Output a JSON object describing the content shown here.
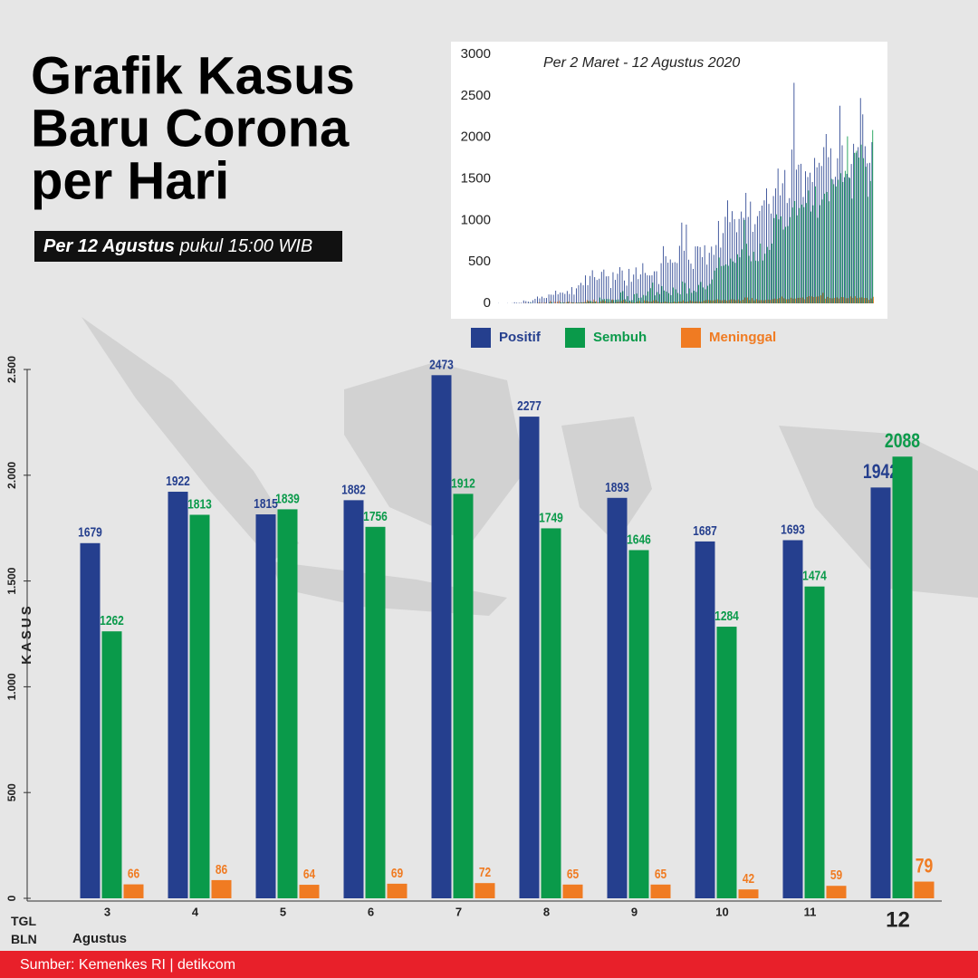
{
  "title": [
    "Grafik Kasus",
    "Baru Corona",
    "per Hari"
  ],
  "subtitle": {
    "bold": "Per 12 Agustus",
    "rest": "pukul 15:00 WIB"
  },
  "source": "Sumber: Kemenkes RI | detikcom",
  "x_label": "TGL\nBLN",
  "chart_data": [
    {
      "type": "bar",
      "y_label": "KASUS",
      "month_label": "Agustus",
      "categories": [
        "3",
        "4",
        "5",
        "6",
        "7",
        "8",
        "9",
        "10",
        "11",
        "12"
      ],
      "ylim": [
        0,
        2500
      ],
      "yticks": [
        0,
        {
          "value": 500,
          "label": "500"
        },
        {
          "value": 1000,
          "label": "1.000"
        },
        {
          "value": 1500,
          "label": "1.500"
        },
        {
          "value": 2000,
          "label": "2.000"
        },
        {
          "value": 2500,
          "label": "2.500"
        }
      ],
      "series": [
        {
          "name": "Positif",
          "color": "#253f8e",
          "values": [
            1679,
            1922,
            1815,
            1882,
            2473,
            2277,
            1893,
            1687,
            1693,
            1942
          ]
        },
        {
          "name": "Sembuh",
          "color": "#0a9a4a",
          "values": [
            1262,
            1813,
            1839,
            1756,
            1912,
            1749,
            1646,
            1284,
            1474,
            2088
          ]
        },
        {
          "name": "Meninggal",
          "color": "#f07b22",
          "values": [
            66,
            86,
            64,
            69,
            72,
            65,
            65,
            42,
            59,
            79
          ]
        }
      ]
    },
    {
      "type": "bar",
      "title": "Per 2 Maret - 12 Agustus 2020",
      "ylim": [
        0,
        3000
      ],
      "yticks": [
        0,
        500,
        1000,
        1500,
        2000,
        2500,
        3000
      ],
      "series": [
        {
          "color": "#253f8e",
          "values": [
            2,
            0,
            0,
            0,
            2,
            0,
            2,
            13,
            8,
            7,
            7,
            35,
            27,
            21,
            17,
            38,
            55,
            82,
            60,
            81,
            64,
            65,
            107,
            105,
            103,
            153,
            109,
            130,
            129,
            114,
            149,
            113,
            196,
            106,
            181,
            218,
            247,
            218,
            337,
            219,
            330,
            399,
            316,
            282,
            297,
            380,
            407,
            325,
            327,
            185,
            375,
            283,
            357,
            436,
            396,
            275,
            214,
            415,
            260,
            347,
            433,
            292,
            349,
            484,
            367,
            338,
            336,
            338,
            386,
            387,
            233,
            484,
            689,
            568,
            490,
            529,
            489,
            496,
            486,
            693,
            973,
            634,
            949,
            526,
            479,
            415,
            686,
            687,
            678,
            557,
            700,
            467,
            609,
            684,
            585,
            703,
            993,
            672,
            847,
            1043,
            1241,
            979,
            1111,
            1014,
            857,
            1017,
            1106,
            1031,
            1331,
            1041,
            1226,
            862,
            954,
            1051,
            1113,
            1178,
            1241,
            1385,
            1198,
            1082,
            1293,
            1385,
            1624,
            1301,
            1447,
            1607,
            1209,
            1268,
            1853,
            2657,
            1611,
            1671,
            1681,
            1282,
            1591,
            1522,
            1574,
            1462,
            1752,
            1639,
            1693,
            1655,
            1882,
            2040,
            1761,
            1868,
            1492,
            1525,
            1748,
            2381,
            1904,
            1519,
            1560,
            1519,
            1679,
            1922,
            1815,
            1882,
            2473,
            2277,
            1893,
            1687,
            1693,
            1942
          ]
        },
        {
          "color": "#0a9a4a",
          "values": [
            0,
            0,
            0,
            0,
            0,
            0,
            0,
            0,
            0,
            0,
            0,
            0,
            0,
            2,
            6,
            0,
            0,
            3,
            3,
            0,
            3,
            0,
            9,
            15,
            1,
            1,
            4,
            11,
            11,
            3,
            16,
            0,
            12,
            2,
            10,
            9,
            13,
            9,
            14,
            29,
            28,
            17,
            21,
            5,
            70,
            50,
            52,
            53,
            51,
            40,
            40,
            44,
            47,
            131,
            148,
            49,
            87,
            33,
            39,
            110,
            118,
            66,
            70,
            101,
            93,
            144,
            183,
            250,
            96,
            136,
            112,
            208,
            155,
            142,
            123,
            99,
            191,
            169,
            125,
            109,
            263,
            246,
            117,
            180,
            127,
            152,
            138,
            222,
            258,
            192,
            170,
            212,
            234,
            288,
            395,
            426,
            552,
            449,
            455,
            469,
            453,
            539,
            505,
            488,
            591,
            555,
            651,
            1005,
            718,
            573,
            507,
            621,
            515,
            509,
            720,
            516,
            598,
            680,
            644,
            720,
            1027,
            1072,
            1012,
            1048,
            889,
            922,
            931,
            1039,
            1155,
            1233,
            1060,
            1148,
            1190,
            1159,
            1209,
            1360,
            1106,
            1181,
            1409,
            1031,
            1183,
            1251,
            1321,
            1342,
            1230,
            1500,
            1436,
            1408,
            1489,
            1568,
            1462,
            1597,
            2012,
            1510,
            1262,
            1813,
            1839,
            1756,
            1912,
            1749,
            1646,
            1284,
            1474,
            2088
          ]
        },
        {
          "color": "#f07b22",
          "values": [
            0,
            0,
            0,
            0,
            0,
            0,
            0,
            0,
            0,
            1,
            0,
            4,
            1,
            0,
            0,
            0,
            2,
            12,
            6,
            7,
            10,
            0,
            28,
            0,
            20,
            20,
            30,
            2,
            9,
            14,
            21,
            13,
            11,
            10,
            7,
            11,
            12,
            19,
            40,
            25,
            15,
            46,
            26,
            14,
            23,
            36,
            27,
            13,
            15,
            47,
            8,
            18,
            19,
            26,
            43,
            23,
            14,
            18,
            11,
            8,
            21,
            28,
            8,
            35,
            30,
            21,
            22,
            36,
            39,
            22,
            12,
            13,
            22,
            16,
            12,
            10,
            21,
            13,
            21,
            22,
            36,
            19,
            21,
            35,
            25,
            23,
            24,
            22,
            19,
            33,
            40,
            41,
            36,
            35,
            40,
            49,
            39,
            36,
            41,
            32,
            40,
            49,
            48,
            37,
            47,
            30,
            43,
            71,
            70,
            40,
            64,
            35,
            51,
            37,
            39,
            37,
            41,
            46,
            42,
            51,
            58,
            53,
            64,
            82,
            61,
            49,
            51,
            68,
            58,
            58,
            66,
            67,
            71,
            50,
            76,
            87,
            84,
            76,
            80,
            84,
            96,
            127,
            57,
            78,
            64,
            61,
            66,
            71,
            59,
            76,
            74,
            62,
            63,
            84,
            66,
            86,
            64,
            69,
            72,
            65,
            65,
            42,
            59,
            79
          ]
        }
      ]
    }
  ]
}
